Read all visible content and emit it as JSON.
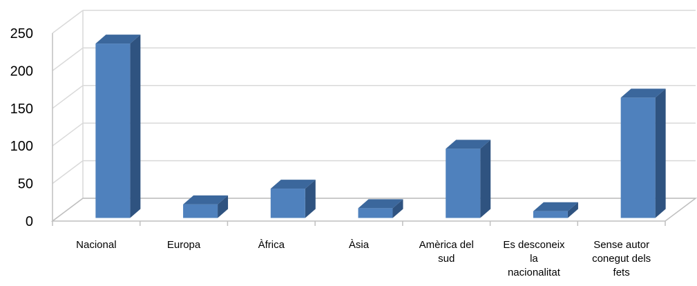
{
  "chart_data": {
    "type": "bar",
    "style": "3d-column",
    "categories": [
      [
        "Nacional"
      ],
      [
        "Europa"
      ],
      [
        "Àfrica"
      ],
      [
        "Àsia"
      ],
      [
        "Amèrica del",
        "sud"
      ],
      [
        "Es desconeix",
        "la",
        "nacionalitat"
      ],
      [
        "Sense autor",
        "conegut dels",
        "fets"
      ]
    ],
    "values": [
      232,
      18,
      39,
      13,
      92,
      9,
      160
    ],
    "ylim": [
      0,
      250
    ],
    "yticks": [
      "0",
      "50",
      "100",
      "150",
      "200",
      "250"
    ],
    "grid": true,
    "legend": "none",
    "colors": {
      "front": "#4f81bd",
      "side": "#2f5380",
      "top": "#3b679c",
      "grid": "#d9d9d9",
      "axis": "#bfbfbf"
    }
  }
}
